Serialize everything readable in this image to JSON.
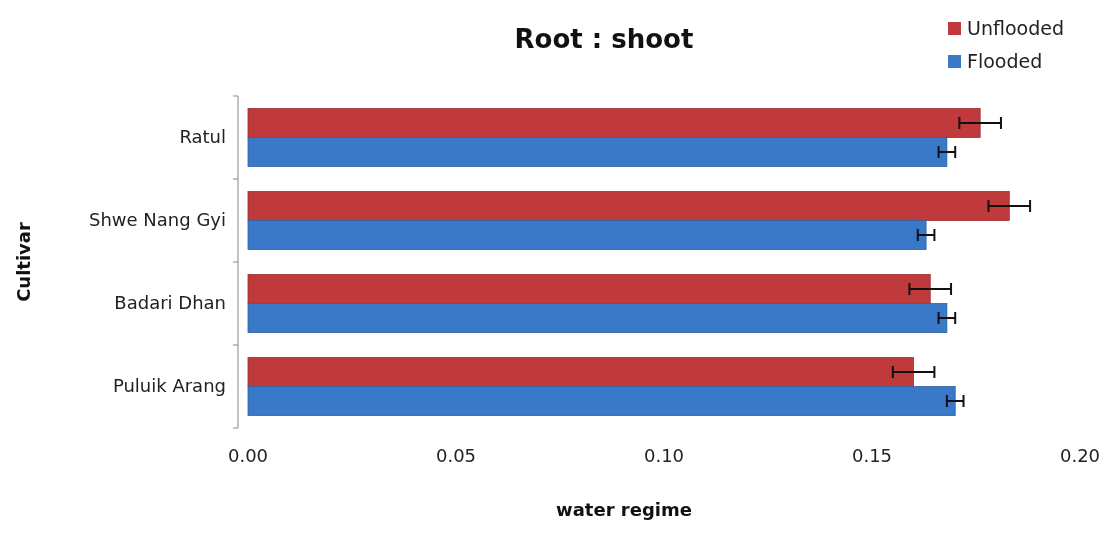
{
  "chart_data": {
    "type": "bar",
    "orientation": "horizontal",
    "title": "Root : shoot",
    "xlabel": "water regime",
    "ylabel": "Cultivar",
    "categories": [
      "Ratul",
      "Shwe Nang Gyi",
      "Badari Dhan",
      "Puluik Arang"
    ],
    "series": [
      {
        "name": "Unflooded",
        "color": "#c0393b",
        "values": [
          0.176,
          0.183,
          0.164,
          0.16
        ],
        "errors": [
          0.005,
          0.005,
          0.005,
          0.005
        ]
      },
      {
        "name": "Flooded",
        "color": "#3a78c8",
        "values": [
          0.168,
          0.163,
          0.168,
          0.17
        ],
        "errors": [
          0.002,
          0.002,
          0.002,
          0.002
        ]
      }
    ],
    "xlim": [
      0,
      0.2
    ],
    "xticks": [
      {
        "value": 0,
        "label": "0.00"
      },
      {
        "value": 0.05,
        "label": "0.05"
      },
      {
        "value": 0.1,
        "label": "0.10"
      },
      {
        "value": 0.15,
        "label": "0.15"
      },
      {
        "value": 0.2,
        "label": "0.20"
      }
    ],
    "grid": false,
    "legend": "top right"
  }
}
